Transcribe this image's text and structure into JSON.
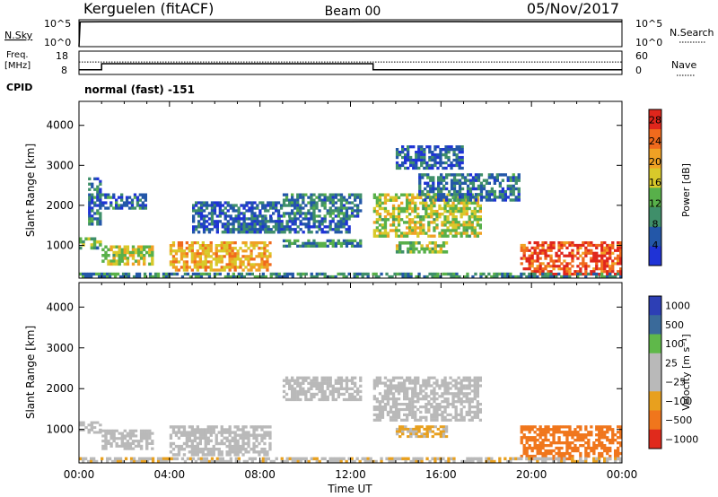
{
  "header": {
    "station": "Kerguelen (fitACF)",
    "beam": "Beam 00",
    "date": "05/Nov/2017"
  },
  "nsky_panel": {
    "left_label": "N.Sky",
    "left_ticks": [
      "10^5",
      "10^0"
    ],
    "right_label": "N.Search",
    "right_ticks": [
      "10^5",
      "10^0"
    ]
  },
  "freq_panel": {
    "left_label_top": "Freq.",
    "left_label_bottom": "[MHz]",
    "left_ticks": [
      "18",
      "8"
    ],
    "right_label": "Nave",
    "right_ticks": [
      "60",
      "0"
    ],
    "cpid_label": "CPID",
    "mode_text": "normal (fast) -151"
  },
  "chart_data": [
    {
      "type": "line",
      "panel": "N.Sky / N.Search",
      "x_unit": "hours UT",
      "series": [
        {
          "name": "N.Sky",
          "x": [
            0,
            0.05,
            1,
            6,
            12,
            13,
            18,
            24
          ],
          "y": [
            1,
            40000,
            42000,
            43000,
            42000,
            44000,
            43000,
            42000
          ]
        },
        {
          "name": "N.Search",
          "x": [
            0,
            24
          ],
          "y": [
            1,
            1
          ]
        }
      ],
      "ylim": [
        1,
        100000
      ],
      "yscale": "log"
    },
    {
      "type": "line",
      "panel": "Freq. / Nave",
      "x_unit": "hours UT",
      "series": [
        {
          "name": "Freq.",
          "x": [
            0,
            1,
            1,
            13,
            13,
            24
          ],
          "y": [
            10,
            10,
            12.6,
            12.6,
            10,
            10
          ]
        },
        {
          "name": "Nave",
          "x": [
            0,
            24
          ],
          "y": [
            32,
            32
          ]
        }
      ],
      "ylim_left": [
        8,
        18
      ],
      "ylim_right": [
        0,
        60
      ]
    },
    {
      "type": "heatmap",
      "panel": "Power",
      "ylabel": "Slant Range [km]",
      "xlim": [
        0,
        24
      ],
      "ylim": [
        180,
        4600
      ],
      "yticks": [
        "1000",
        "2000",
        "3000",
        "4000"
      ],
      "colorbar": {
        "label": "Power [dB]",
        "ticks": [
          "4",
          "8",
          "12",
          "16",
          "20",
          "24",
          "28"
        ],
        "range": [
          0,
          30
        ]
      },
      "regions": [
        {
          "t": [
            0.0,
            1.0
          ],
          "r": [
            900,
            1200
          ],
          "v": 12
        },
        {
          "t": [
            0.4,
            1.0
          ],
          "r": [
            1500,
            2700
          ],
          "v": 7
        },
        {
          "t": [
            1.0,
            3.0
          ],
          "r": [
            1900,
            2300
          ],
          "v": 7
        },
        {
          "t": [
            1.0,
            3.3
          ],
          "r": [
            500,
            1000
          ],
          "v": 16
        },
        {
          "t": [
            4.0,
            8.5
          ],
          "r": [
            350,
            1100
          ],
          "v": 20
        },
        {
          "t": [
            5.0,
            9.0
          ],
          "r": [
            1300,
            2100
          ],
          "v": 6
        },
        {
          "t": [
            7.0,
            12.0
          ],
          "r": [
            1300,
            1700
          ],
          "v": 6
        },
        {
          "t": [
            9.0,
            12.5
          ],
          "r": [
            1700,
            2300
          ],
          "v": 8
        },
        {
          "t": [
            9.0,
            12.5
          ],
          "r": [
            950,
            1150
          ],
          "v": 9
        },
        {
          "t": [
            13.0,
            17.8
          ],
          "r": [
            1200,
            2300
          ],
          "v": 16
        },
        {
          "t": [
            15.0,
            19.5
          ],
          "r": [
            2100,
            2800
          ],
          "v": 7
        },
        {
          "t": [
            14.0,
            17.0
          ],
          "r": [
            2900,
            3500
          ],
          "v": 5
        },
        {
          "t": [
            14.0,
            16.3
          ],
          "r": [
            800,
            1100
          ],
          "v": 15
        },
        {
          "t": [
            19.5,
            24.0
          ],
          "r": [
            250,
            1100
          ],
          "v": 26
        },
        {
          "t": [
            0.0,
            24.0
          ],
          "r": [
            180,
            320
          ],
          "v": 9
        }
      ]
    },
    {
      "type": "heatmap",
      "panel": "Velocity",
      "ylabel": "Slant Range [km]",
      "xlabel": "Time UT",
      "xlim": [
        0,
        24
      ],
      "ylim": [
        180,
        4600
      ],
      "xticks": [
        "00:00",
        "04:00",
        "08:00",
        "12:00",
        "16:00",
        "20:00",
        "00:00"
      ],
      "yticks": [
        "1000",
        "2000",
        "3000",
        "4000"
      ],
      "colorbar": {
        "label": "Velocity [m s⁻¹]",
        "ticks": [
          "1000",
          "500",
          "100",
          "25",
          "−25",
          "−100",
          "−500",
          "−1000"
        ]
      },
      "regions": [
        {
          "t": [
            0.0,
            1.0
          ],
          "r": [
            900,
            1200
          ],
          "v": 0
        },
        {
          "t": [
            1.0,
            3.3
          ],
          "r": [
            500,
            1000
          ],
          "v": 0
        },
        {
          "t": [
            4.0,
            8.5
          ],
          "r": [
            350,
            1100
          ],
          "v": 0
        },
        {
          "t": [
            9.0,
            12.5
          ],
          "r": [
            1700,
            2300
          ],
          "v": 0
        },
        {
          "t": [
            13.0,
            17.8
          ],
          "r": [
            1200,
            2300
          ],
          "v": 0
        },
        {
          "t": [
            14.0,
            16.3
          ],
          "r": [
            800,
            1100
          ],
          "v": -30
        },
        {
          "t": [
            19.5,
            24.0
          ],
          "r": [
            250,
            1100
          ],
          "v": -120
        },
        {
          "t": [
            0.0,
            24.0
          ],
          "r": [
            180,
            320
          ],
          "v": -20
        }
      ]
    }
  ]
}
